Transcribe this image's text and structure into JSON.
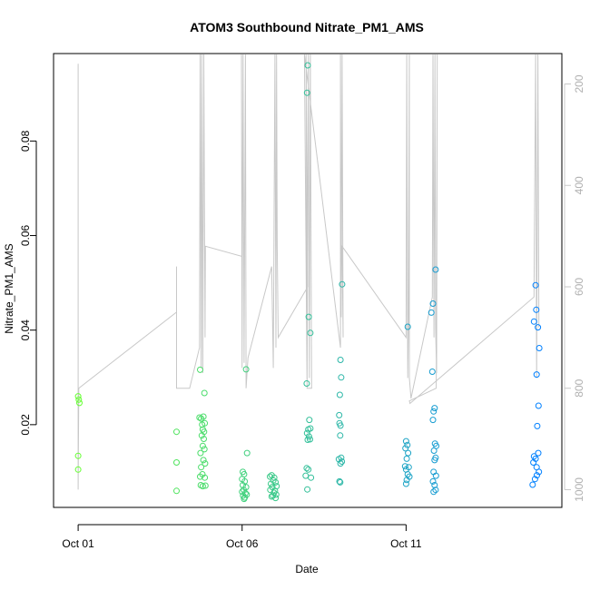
{
  "chart_data": {
    "type": "scatter",
    "title": "ATOM3 Southbound Nitrate_PM1_AMS",
    "xlabel": "Date",
    "ylabel": "Nitrate_PM1_AMS",
    "x_ticks": [
      {
        "day": 1,
        "label": "Oct 01"
      },
      {
        "day": 6,
        "label": "Oct 06"
      },
      {
        "day": 11,
        "label": "Oct 11"
      }
    ],
    "xlim_days": [
      0.25,
      15.75
    ],
    "ylim": [
      0.0025,
      0.0985
    ],
    "y_ticks": [
      0.02,
      0.04,
      0.06,
      0.08
    ],
    "right_axis": {
      "ylim": [
        140,
        1035
      ],
      "ticks": [
        200,
        400,
        600,
        800,
        1000
      ]
    },
    "color_start": "#66ff33",
    "color_end": "#0080ff",
    "track_color": "#c8c8c8",
    "points": [
      {
        "day": 1.0,
        "y": 0.026
      },
      {
        "day": 1.02,
        "y": 0.0253
      },
      {
        "day": 1.04,
        "y": 0.0246
      },
      {
        "day": 1.0,
        "y": 0.0134
      },
      {
        "day": 1.0,
        "y": 0.0105
      },
      {
        "day": 4.0,
        "y": 0.0185
      },
      {
        "day": 4.0,
        "y": 0.012
      },
      {
        "day": 4.0,
        "y": 0.006
      },
      {
        "day": 4.72,
        "y": 0.0316
      },
      {
        "day": 4.85,
        "y": 0.0267
      },
      {
        "day": 4.7,
        "y": 0.0215
      },
      {
        "day": 4.75,
        "y": 0.0213
      },
      {
        "day": 4.82,
        "y": 0.0217
      },
      {
        "day": 4.78,
        "y": 0.02
      },
      {
        "day": 4.86,
        "y": 0.0203
      },
      {
        "day": 4.8,
        "y": 0.019
      },
      {
        "day": 4.84,
        "y": 0.0185
      },
      {
        "day": 4.77,
        "y": 0.0177
      },
      {
        "day": 4.83,
        "y": 0.017
      },
      {
        "day": 4.8,
        "y": 0.0155
      },
      {
        "day": 4.85,
        "y": 0.0148
      },
      {
        "day": 4.73,
        "y": 0.014
      },
      {
        "day": 4.82,
        "y": 0.0125
      },
      {
        "day": 4.87,
        "y": 0.0118
      },
      {
        "day": 4.75,
        "y": 0.011
      },
      {
        "day": 4.79,
        "y": 0.0095
      },
      {
        "day": 4.72,
        "y": 0.009
      },
      {
        "day": 4.86,
        "y": 0.0088
      },
      {
        "day": 4.74,
        "y": 0.0072
      },
      {
        "day": 4.8,
        "y": 0.007
      },
      {
        "day": 4.88,
        "y": 0.0071
      },
      {
        "day": 6.12,
        "y": 0.0317
      },
      {
        "day": 6.15,
        "y": 0.014
      },
      {
        "day": 6.02,
        "y": 0.01
      },
      {
        "day": 6.06,
        "y": 0.0095
      },
      {
        "day": 6.0,
        "y": 0.0085
      },
      {
        "day": 6.08,
        "y": 0.008
      },
      {
        "day": 6.02,
        "y": 0.0072
      },
      {
        "day": 6.12,
        "y": 0.0068
      },
      {
        "day": 6.05,
        "y": 0.0062
      },
      {
        "day": 6.0,
        "y": 0.0058
      },
      {
        "day": 6.1,
        "y": 0.0055
      },
      {
        "day": 6.03,
        "y": 0.005
      },
      {
        "day": 6.08,
        "y": 0.0046
      },
      {
        "day": 6.14,
        "y": 0.0052
      },
      {
        "day": 6.06,
        "y": 0.0043
      },
      {
        "day": 6.85,
        "y": 0.009
      },
      {
        "day": 6.9,
        "y": 0.0093
      },
      {
        "day": 6.98,
        "y": 0.0088
      },
      {
        "day": 6.95,
        "y": 0.0082
      },
      {
        "day": 7.02,
        "y": 0.0078
      },
      {
        "day": 6.88,
        "y": 0.0075
      },
      {
        "day": 7.05,
        "y": 0.007
      },
      {
        "day": 6.92,
        "y": 0.0068
      },
      {
        "day": 6.86,
        "y": 0.0062
      },
      {
        "day": 7.0,
        "y": 0.006
      },
      {
        "day": 6.97,
        "y": 0.0056
      },
      {
        "day": 7.04,
        "y": 0.0052
      },
      {
        "day": 6.9,
        "y": 0.0048
      },
      {
        "day": 7.02,
        "y": 0.0045
      },
      {
        "day": 6.94,
        "y": 0.005
      },
      {
        "day": 8.0,
        "y": 0.096
      },
      {
        "day": 7.98,
        "y": 0.0902
      },
      {
        "day": 8.03,
        "y": 0.0428
      },
      {
        "day": 8.08,
        "y": 0.0394
      },
      {
        "day": 7.97,
        "y": 0.0287
      },
      {
        "day": 8.05,
        "y": 0.021
      },
      {
        "day": 8.02,
        "y": 0.019
      },
      {
        "day": 8.08,
        "y": 0.0192
      },
      {
        "day": 7.98,
        "y": 0.0182
      },
      {
        "day": 8.04,
        "y": 0.0175
      },
      {
        "day": 8.0,
        "y": 0.0168
      },
      {
        "day": 8.07,
        "y": 0.0169
      },
      {
        "day": 7.97,
        "y": 0.0108
      },
      {
        "day": 8.02,
        "y": 0.0105
      },
      {
        "day": 7.94,
        "y": 0.0092
      },
      {
        "day": 8.1,
        "y": 0.0088
      },
      {
        "day": 7.99,
        "y": 0.0063
      },
      {
        "day": 9.05,
        "y": 0.0497
      },
      {
        "day": 9.0,
        "y": 0.0337
      },
      {
        "day": 9.02,
        "y": 0.03
      },
      {
        "day": 8.98,
        "y": 0.0263
      },
      {
        "day": 8.96,
        "y": 0.022
      },
      {
        "day": 8.97,
        "y": 0.0203
      },
      {
        "day": 9.0,
        "y": 0.0198
      },
      {
        "day": 8.99,
        "y": 0.0177
      },
      {
        "day": 8.95,
        "y": 0.0127
      },
      {
        "day": 9.02,
        "y": 0.013
      },
      {
        "day": 9.04,
        "y": 0.0122
      },
      {
        "day": 9.0,
        "y": 0.0118
      },
      {
        "day": 8.97,
        "y": 0.008
      },
      {
        "day": 8.99,
        "y": 0.0078
      },
      {
        "day": 11.05,
        "y": 0.0407
      },
      {
        "day": 11.0,
        "y": 0.0165
      },
      {
        "day": 11.04,
        "y": 0.0157
      },
      {
        "day": 10.98,
        "y": 0.015
      },
      {
        "day": 11.06,
        "y": 0.014
      },
      {
        "day": 11.02,
        "y": 0.0128
      },
      {
        "day": 10.97,
        "y": 0.0112
      },
      {
        "day": 11.08,
        "y": 0.011
      },
      {
        "day": 11.0,
        "y": 0.0105
      },
      {
        "day": 11.05,
        "y": 0.0095
      },
      {
        "day": 11.1,
        "y": 0.009
      },
      {
        "day": 11.02,
        "y": 0.0083
      },
      {
        "day": 11.0,
        "y": 0.0075
      },
      {
        "day": 11.9,
        "y": 0.0528
      },
      {
        "day": 11.82,
        "y": 0.0456
      },
      {
        "day": 11.77,
        "y": 0.0437
      },
      {
        "day": 11.8,
        "y": 0.0312
      },
      {
        "day": 11.87,
        "y": 0.0235
      },
      {
        "day": 11.84,
        "y": 0.0228
      },
      {
        "day": 11.82,
        "y": 0.021
      },
      {
        "day": 11.88,
        "y": 0.016
      },
      {
        "day": 11.92,
        "y": 0.0155
      },
      {
        "day": 11.85,
        "y": 0.0145
      },
      {
        "day": 11.9,
        "y": 0.013
      },
      {
        "day": 11.87,
        "y": 0.0125
      },
      {
        "day": 11.84,
        "y": 0.01
      },
      {
        "day": 11.91,
        "y": 0.0092
      },
      {
        "day": 11.82,
        "y": 0.008
      },
      {
        "day": 11.87,
        "y": 0.0072
      },
      {
        "day": 11.9,
        "y": 0.0062
      },
      {
        "day": 11.84,
        "y": 0.0058
      },
      {
        "day": 14.95,
        "y": 0.0495
      },
      {
        "day": 14.9,
        "y": 0.0418
      },
      {
        "day": 14.97,
        "y": 0.0443
      },
      {
        "day": 15.02,
        "y": 0.0406
      },
      {
        "day": 15.06,
        "y": 0.0362
      },
      {
        "day": 14.98,
        "y": 0.0306
      },
      {
        "day": 15.04,
        "y": 0.024
      },
      {
        "day": 15.0,
        "y": 0.0197
      },
      {
        "day": 15.03,
        "y": 0.014
      },
      {
        "day": 14.9,
        "y": 0.0133
      },
      {
        "day": 14.95,
        "y": 0.0128
      },
      {
        "day": 14.88,
        "y": 0.012
      },
      {
        "day": 14.98,
        "y": 0.011
      },
      {
        "day": 15.05,
        "y": 0.01
      },
      {
        "day": 14.99,
        "y": 0.0093
      },
      {
        "day": 14.93,
        "y": 0.0085
      },
      {
        "day": 14.86,
        "y": 0.0073
      }
    ],
    "track_hpa": [
      [
        1.0,
        160
      ],
      [
        1.0,
        1000
      ],
      [
        1.02,
        800
      ],
      [
        4.0,
        650
      ],
      [
        4.0,
        560
      ],
      [
        4.0,
        800
      ],
      [
        4.4,
        800
      ],
      [
        4.7,
        720
      ],
      [
        4.72,
        140
      ],
      [
        4.75,
        760
      ],
      [
        4.77,
        140
      ],
      [
        4.8,
        770
      ],
      [
        4.83,
        140
      ],
      [
        4.87,
        700
      ],
      [
        4.88,
        520
      ],
      [
        6.0,
        540
      ],
      [
        5.98,
        140
      ],
      [
        6.0,
        760
      ],
      [
        6.03,
        140
      ],
      [
        6.06,
        750
      ],
      [
        6.1,
        140
      ],
      [
        6.12,
        800
      ],
      [
        6.18,
        740
      ],
      [
        6.9,
        560
      ],
      [
        6.95,
        760
      ],
      [
        7.0,
        140
      ],
      [
        7.03,
        720
      ],
      [
        7.05,
        140
      ],
      [
        7.07,
        520
      ],
      [
        7.1,
        700
      ],
      [
        8.0,
        600
      ],
      [
        7.95,
        140
      ],
      [
        7.98,
        800
      ],
      [
        8.02,
        140
      ],
      [
        8.05,
        780
      ],
      [
        8.08,
        140
      ],
      [
        8.12,
        800
      ],
      [
        7.98,
        800
      ],
      [
        7.9,
        140
      ],
      [
        9.0,
        720
      ],
      [
        9.0,
        140
      ],
      [
        9.02,
        660
      ],
      [
        9.05,
        140
      ],
      [
        9.08,
        700
      ],
      [
        9.05,
        520
      ],
      [
        11.0,
        700
      ],
      [
        11.02,
        140
      ],
      [
        11.05,
        780
      ],
      [
        11.07,
        680
      ],
      [
        11.1,
        140
      ],
      [
        11.1,
        780
      ],
      [
        11.15,
        820
      ],
      [
        11.8,
        620
      ],
      [
        11.82,
        140
      ],
      [
        11.85,
        700
      ],
      [
        11.88,
        140
      ],
      [
        11.9,
        680
      ],
      [
        11.93,
        770
      ],
      [
        11.95,
        140
      ],
      [
        11.92,
        800
      ],
      [
        11.1,
        825
      ],
      [
        11.12,
        830
      ],
      [
        14.9,
        620
      ],
      [
        14.95,
        140
      ],
      [
        14.98,
        780
      ],
      [
        15.02,
        140
      ],
      [
        15.05,
        680
      ]
    ]
  }
}
